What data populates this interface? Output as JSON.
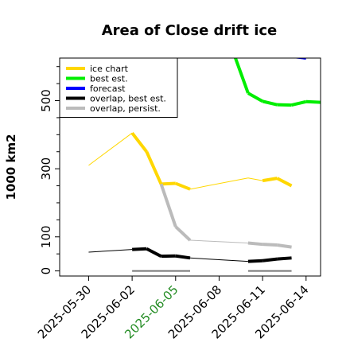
{
  "chart_data": {
    "type": "line",
    "title": "Area of Close drift ice",
    "ylabel": "1000 km2",
    "xlabel": "",
    "ylim": [
      -15,
      625
    ],
    "xlim": [
      "2025-05-28",
      "2025-06-15"
    ],
    "yticks": [
      0,
      100,
      300,
      500
    ],
    "xticks": [
      {
        "label": "2025-05-30",
        "color": "#000000"
      },
      {
        "label": "2025-06-02",
        "color": "#000000"
      },
      {
        "label": "2025-06-05",
        "color": "#228b22"
      },
      {
        "label": "2025-06-08",
        "color": "#000000"
      },
      {
        "label": "2025-06-11",
        "color": "#000000"
      },
      {
        "label": "2025-06-14",
        "color": "#000000"
      }
    ],
    "grid": false,
    "legend": {
      "location": "top-left",
      "entries": [
        {
          "name": "ice chart",
          "color": "#ffd700"
        },
        {
          "name": "best est.",
          "color": "#00ee00"
        },
        {
          "name": "forecast",
          "color": "#0000ff"
        },
        {
          "name": "overlap, best est.",
          "color": "#000000"
        },
        {
          "name": "overlap, persist.",
          "color": "#bbbbbb"
        }
      ]
    },
    "series": [
      {
        "name": "ice chart",
        "color": "#ffd700",
        "points": [
          [
            "2025-05-30",
            310
          ],
          [
            "2025-06-02",
            405
          ],
          [
            "2025-06-03",
            350
          ],
          [
            "2025-06-04",
            255
          ],
          [
            "2025-06-05",
            257
          ],
          [
            "2025-06-06",
            240
          ],
          [
            "2025-06-10",
            273
          ],
          [
            "2025-06-11",
            265
          ],
          [
            "2025-06-12",
            272
          ],
          [
            "2025-06-13",
            250
          ]
        ],
        "thick_segments": [
          [
            1,
            5
          ],
          [
            7,
            9
          ]
        ]
      },
      {
        "name": "best est.",
        "color": "#00ee00",
        "points": [
          [
            "2025-06-09",
            640
          ],
          [
            "2025-06-10",
            522
          ],
          [
            "2025-06-11",
            498
          ],
          [
            "2025-06-12",
            488
          ],
          [
            "2025-06-13",
            487
          ],
          [
            "2025-06-14",
            497
          ],
          [
            "2025-06-15",
            495
          ]
        ]
      },
      {
        "name": "forecast",
        "color": "#0000ff",
        "points": [
          [
            "2025-06-13",
            630
          ],
          [
            "2025-06-14",
            625
          ]
        ]
      },
      {
        "name": "overlap, best est.",
        "color": "#000000",
        "points": [
          [
            "2025-05-30",
            55
          ],
          [
            "2025-06-02",
            63
          ],
          [
            "2025-06-03",
            65
          ],
          [
            "2025-06-04",
            43
          ],
          [
            "2025-06-05",
            44
          ],
          [
            "2025-06-06",
            38
          ],
          [
            "2025-06-10",
            28
          ],
          [
            "2025-06-11",
            30
          ],
          [
            "2025-06-12",
            35
          ],
          [
            "2025-06-13",
            38
          ]
        ],
        "thick_segments": [
          [
            1,
            5
          ],
          [
            6,
            9
          ]
        ]
      },
      {
        "name": "overlap, persist.",
        "color": "#bbbbbb",
        "points": [
          [
            "2025-06-04",
            255
          ],
          [
            "2025-06-05",
            130
          ],
          [
            "2025-06-06",
            90
          ],
          [
            "2025-06-10",
            82
          ],
          [
            "2025-06-11",
            78
          ],
          [
            "2025-06-12",
            76
          ],
          [
            "2025-06-13",
            70
          ]
        ],
        "thick_segments": [
          [
            0,
            2
          ],
          [
            3,
            6
          ]
        ]
      },
      {
        "name": "",
        "color": "#777777",
        "points": [
          [
            "2025-06-02",
            0
          ],
          [
            "2025-06-06",
            0
          ]
        ]
      },
      {
        "name": "",
        "color": "#777777",
        "points": [
          [
            "2025-06-10",
            0
          ],
          [
            "2025-06-13",
            0
          ]
        ]
      }
    ]
  }
}
